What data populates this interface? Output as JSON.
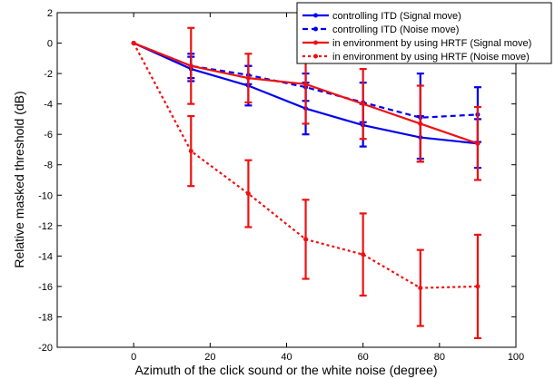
{
  "chart_data": {
    "type": "line",
    "title": "",
    "xlabel": "Azimuth of the click sound or the white noise (degree)",
    "ylabel": "Relative masked threshold (dB)",
    "xlim": [
      -20,
      100
    ],
    "ylim": [
      -20,
      2
    ],
    "xticks": [
      0,
      20,
      40,
      60,
      80,
      100
    ],
    "yticks": [
      2,
      0,
      -2,
      -4,
      -6,
      -8,
      -10,
      -12,
      -14,
      -16,
      -18,
      -20
    ],
    "grid": false,
    "legend_position": "top-right",
    "colors": {
      "blue": "#0000ee",
      "red": "#ee1111"
    },
    "series": [
      {
        "name": "controlling ITD (Signal move)",
        "color": "blue",
        "dash": "solid",
        "x": [
          0,
          15,
          30,
          45,
          60,
          75,
          90
        ],
        "y": [
          0,
          -1.7,
          -2.8,
          -4.3,
          -5.4,
          -6.2,
          -6.6
        ],
        "err": [
          0,
          0.8,
          1.3,
          1.7,
          1.4,
          1.4,
          1.6
        ]
      },
      {
        "name": "controlling ITD (Noise move)",
        "color": "blue",
        "dash": "dash",
        "x": [
          0,
          15,
          30,
          45,
          60,
          75,
          90
        ],
        "y": [
          0,
          -1.5,
          -2.1,
          -2.9,
          -3.9,
          -4.9,
          -4.7
        ],
        "err": [
          0,
          0.8,
          0.6,
          0.9,
          1.3,
          2.9,
          1.8
        ]
      },
      {
        "name": "in environment by using HRTF (Signal move)",
        "color": "red",
        "dash": "solid",
        "x": [
          0,
          15,
          30,
          45,
          60,
          75,
          90
        ],
        "y": [
          0,
          -1.5,
          -2.3,
          -2.7,
          -4.0,
          -5.3,
          -6.6
        ],
        "err": [
          0,
          2.5,
          1.6,
          2.6,
          2.3,
          2.5,
          2.4
        ]
      },
      {
        "name": "in environment by using HRTF (Noise move)",
        "color": "red",
        "dash": "dot",
        "x": [
          0,
          15,
          30,
          45,
          60,
          75,
          90
        ],
        "y": [
          0,
          -7.1,
          -9.9,
          -12.9,
          -13.9,
          -16.1,
          -16.0
        ],
        "err": [
          0,
          2.3,
          2.2,
          2.6,
          2.7,
          2.5,
          3.4
        ]
      }
    ]
  }
}
